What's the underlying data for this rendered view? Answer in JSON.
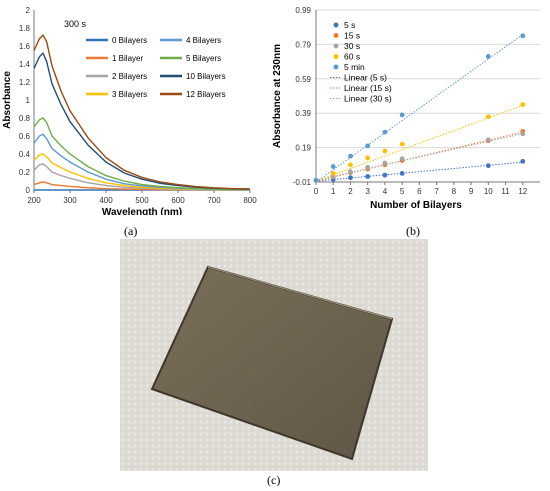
{
  "captions": {
    "a": "(a)",
    "b": "(b)",
    "c": "(c)"
  },
  "chart_data": [
    {
      "type": "line",
      "annotation": "300 s",
      "xlabel": "Wavelength (nm)",
      "ylabel": "Absorbance",
      "xlim": [
        200,
        800
      ],
      "ylim": [
        0,
        2
      ],
      "xticks": [
        "200",
        "300",
        "400",
        "500",
        "600",
        "700",
        "800"
      ],
      "yticks": [
        "0",
        "0.2",
        "0.4",
        "0.6",
        "0.8",
        "1",
        "1.2",
        "1.4",
        "1.6",
        "1.8",
        "2"
      ],
      "legend_position": "top-right",
      "x": [
        200,
        215,
        225,
        235,
        250,
        275,
        300,
        350,
        400,
        450,
        500,
        550,
        600,
        650,
        700,
        750,
        800
      ],
      "series": [
        {
          "name": "0 Bilayers",
          "color": "#2e75b6",
          "values": [
            0,
            0,
            0,
            0,
            0,
            0,
            0,
            0,
            0,
            0,
            0,
            0,
            0,
            0,
            0,
            0,
            0
          ]
        },
        {
          "name": "1 Bilayer",
          "color": "#ed7d31",
          "values": [
            0.06,
            0.08,
            0.09,
            0.08,
            0.06,
            0.05,
            0.04,
            0.025,
            0.015,
            0.01,
            0.006,
            0.004,
            0.003,
            0.002,
            0.001,
            0.001,
            0.001
          ]
        },
        {
          "name": "2 Bilayers",
          "color": "#a5a5a5",
          "values": [
            0.22,
            0.28,
            0.29,
            0.26,
            0.2,
            0.16,
            0.13,
            0.08,
            0.05,
            0.03,
            0.02,
            0.012,
            0.008,
            0.005,
            0.004,
            0.003,
            0.002
          ]
        },
        {
          "name": "3 Bilayers",
          "color": "#ffc000",
          "values": [
            0.33,
            0.39,
            0.4,
            0.37,
            0.3,
            0.25,
            0.2,
            0.13,
            0.08,
            0.05,
            0.03,
            0.02,
            0.013,
            0.009,
            0.006,
            0.004,
            0.003
          ]
        },
        {
          "name": "4 Bilayers",
          "color": "#5b9bd5",
          "values": [
            0.52,
            0.6,
            0.62,
            0.57,
            0.46,
            0.38,
            0.31,
            0.2,
            0.12,
            0.07,
            0.045,
            0.03,
            0.02,
            0.013,
            0.008,
            0.005,
            0.004
          ]
        },
        {
          "name": "5 Bilayers",
          "color": "#70ad47",
          "values": [
            0.7,
            0.78,
            0.8,
            0.75,
            0.6,
            0.49,
            0.4,
            0.26,
            0.16,
            0.1,
            0.06,
            0.04,
            0.026,
            0.017,
            0.011,
            0.007,
            0.005
          ]
        },
        {
          "name": "10 Bilayers",
          "color": "#1f4e79",
          "values": [
            1.35,
            1.48,
            1.52,
            1.43,
            1.18,
            0.95,
            0.76,
            0.5,
            0.31,
            0.19,
            0.12,
            0.075,
            0.05,
            0.032,
            0.02,
            0.013,
            0.009
          ]
        },
        {
          "name": "12 Bilayers",
          "color": "#9e480e",
          "values": [
            1.55,
            1.68,
            1.72,
            1.65,
            1.38,
            1.1,
            0.88,
            0.58,
            0.36,
            0.22,
            0.14,
            0.09,
            0.06,
            0.038,
            0.024,
            0.016,
            0.011
          ]
        }
      ]
    },
    {
      "type": "scatter",
      "xlabel": "Number of Bilayers",
      "ylabel": "Absorbance at 230nm",
      "xlim": [
        0,
        13
      ],
      "ylim": [
        -0.01,
        0.99
      ],
      "xticks": [
        "0",
        "1",
        "2",
        "3",
        "4",
        "5",
        "6",
        "7",
        "8",
        "9",
        "10",
        "11",
        "12"
      ],
      "yticks": [
        "-0.01",
        "0.19",
        "0.39",
        "0.59",
        "0.79",
        "0.99"
      ],
      "legend_position": "top-left",
      "series": [
        {
          "name": "5 s",
          "color": "#4472c4",
          "x": [
            0,
            1,
            2,
            3,
            4,
            5,
            10,
            12
          ],
          "y": [
            0,
            0.005,
            0.015,
            0.022,
            0.03,
            0.04,
            0.085,
            0.11
          ]
        },
        {
          "name": "15 s",
          "color": "#ed7d31",
          "x": [
            0,
            1,
            2,
            3,
            4,
            5,
            10,
            12
          ],
          "y": [
            0,
            0.02,
            0.045,
            0.065,
            0.09,
            0.115,
            0.23,
            0.285
          ]
        },
        {
          "name": "30 s",
          "color": "#a5a5a5",
          "x": [
            0,
            1,
            2,
            3,
            4,
            5,
            10,
            12
          ],
          "y": [
            0,
            0.02,
            0.05,
            0.075,
            0.1,
            0.125,
            0.235,
            0.27
          ]
        },
        {
          "name": "60 s",
          "color": "#ffc000",
          "x": [
            0,
            1,
            2,
            3,
            4,
            5,
            10,
            12
          ],
          "y": [
            0,
            0.04,
            0.09,
            0.13,
            0.17,
            0.21,
            0.37,
            0.44
          ]
        },
        {
          "name": "5 min",
          "color": "#5b9bd5",
          "x": [
            0,
            1,
            2,
            3,
            4,
            5,
            10,
            12
          ],
          "y": [
            0,
            0.08,
            0.14,
            0.2,
            0.28,
            0.38,
            0.72,
            0.84
          ]
        }
      ],
      "trendlines": [
        {
          "name": "Linear (5 s)",
          "color": "#4472c4",
          "slope": 0.0092,
          "intercept": -0.005
        },
        {
          "name": "Linear (15 s)",
          "color": "#ed7d31",
          "slope": 0.0238,
          "intercept": -0.005
        },
        {
          "name": "Linear (30 s)",
          "color": "#a5a5a5",
          "slope": 0.0226,
          "intercept": 0.0
        },
        {
          "name": "",
          "color": "#ffc000",
          "slope": 0.0367,
          "intercept": -0.005
        },
        {
          "name": "",
          "color": "#5b9bd5",
          "slope": 0.0715,
          "intercept": -0.01
        }
      ]
    }
  ],
  "photo": {
    "background_color": "#dcd9d3",
    "slide_color": "#6e6350"
  }
}
